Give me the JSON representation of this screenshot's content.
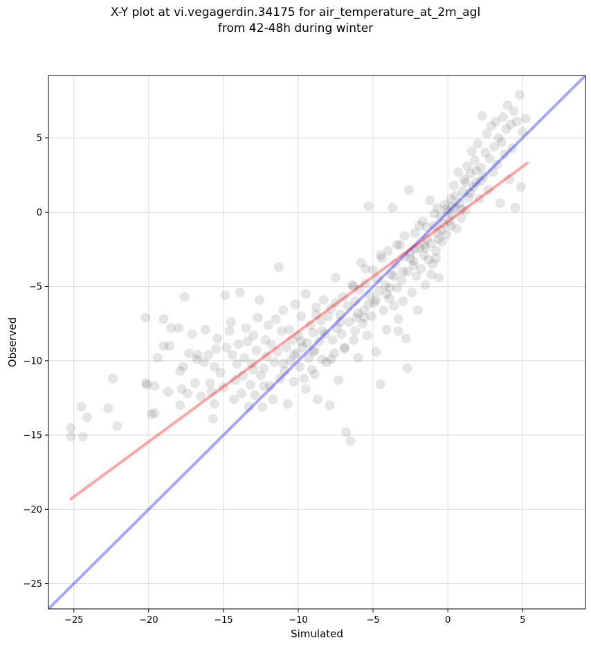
{
  "chart_data": {
    "type": "scatter",
    "title_line1": "X-Y plot at vi.vegagerdin.34175 for air_temperature_at_2m_agl",
    "title_line2": "from 42-48h during winter",
    "xlabel": "Simulated",
    "ylabel": "Observed",
    "xlim": [
      -26.7,
      9.2
    ],
    "ylim": [
      -26.7,
      9.2
    ],
    "xticks": [
      -25,
      -20,
      -15,
      -10,
      -5,
      0,
      5
    ],
    "yticks": [
      -25,
      -20,
      -15,
      -10,
      -5,
      0,
      5
    ],
    "grid": true,
    "point_color": "#000000",
    "identity_line": {
      "color": "#0000ff",
      "from": [
        -26.7,
        -26.7
      ],
      "to": [
        9.2,
        9.2
      ]
    },
    "fit_line": {
      "color": "#ff0000",
      "from": [
        -25.2,
        -19.3
      ],
      "to": [
        5.3,
        3.3
      ]
    },
    "points": [
      [
        -25.2,
        -14.5
      ],
      [
        -25.2,
        -15.1
      ],
      [
        -24.5,
        -13.1
      ],
      [
        -24.4,
        -15.1
      ],
      [
        -24.1,
        -13.8
      ],
      [
        -22.7,
        -13.2
      ],
      [
        -22.4,
        -11.2
      ],
      [
        -22.1,
        -14.4
      ],
      [
        -20.2,
        -7.1
      ],
      [
        -20.2,
        -11.5
      ],
      [
        -19.8,
        -13.6
      ],
      [
        -19.6,
        -13.5
      ],
      [
        -19.6,
        -11.7
      ],
      [
        -19.4,
        -9.8
      ],
      [
        -19.0,
        -7.2
      ],
      [
        -19.0,
        -9.0
      ],
      [
        -18.6,
        -9.0
      ],
      [
        -18.5,
        -7.8
      ],
      [
        -18.0,
        -7.8
      ],
      [
        -17.9,
        -13.0
      ],
      [
        -17.8,
        -11.9
      ],
      [
        -17.7,
        -10.4
      ],
      [
        -17.6,
        -5.7
      ],
      [
        -17.4,
        -12.2
      ],
      [
        -17.3,
        -9.5
      ],
      [
        -17.1,
        -8.2
      ],
      [
        -16.9,
        -11.5
      ],
      [
        -16.7,
        -9.6
      ],
      [
        -16.5,
        -12.4
      ],
      [
        -16.3,
        -10.1
      ],
      [
        -16.2,
        -7.9
      ],
      [
        -16.0,
        -9.6
      ],
      [
        -15.9,
        -11.5
      ],
      [
        -15.8,
        -12.1
      ],
      [
        -15.7,
        -13.9
      ],
      [
        -15.6,
        -12.9
      ],
      [
        -15.5,
        -9.2
      ],
      [
        -15.4,
        -8.5
      ],
      [
        -15.2,
        -10.8
      ],
      [
        -15.0,
        -11.8
      ],
      [
        -14.9,
        -5.6
      ],
      [
        -14.8,
        -9.1
      ],
      [
        -14.6,
        -8.0
      ],
      [
        -14.5,
        -7.4
      ],
      [
        -14.4,
        -9.6
      ],
      [
        -14.3,
        -12.6
      ],
      [
        -14.1,
        -10.2
      ],
      [
        -14.0,
        -8.9
      ],
      [
        -13.9,
        -5.4
      ],
      [
        -13.8,
        -12.2
      ],
      [
        -13.7,
        -11.0
      ],
      [
        -13.6,
        -9.8
      ],
      [
        -13.5,
        -7.8
      ],
      [
        -13.4,
        -8.7
      ],
      [
        -13.3,
        -13.1
      ],
      [
        -13.2,
        -11.6
      ],
      [
        -13.1,
        -10.2
      ],
      [
        -13.0,
        -8.3
      ],
      [
        -12.9,
        -12.3
      ],
      [
        -12.8,
        -9.3
      ],
      [
        -12.7,
        -7.1
      ],
      [
        -12.6,
        -5.9
      ],
      [
        -12.5,
        -11.0
      ],
      [
        -12.4,
        -13.1
      ],
      [
        -12.3,
        -10.5
      ],
      [
        -12.2,
        -8.6
      ],
      [
        -12.1,
        -9.7
      ],
      [
        -12.0,
        -7.6
      ],
      [
        -11.9,
        -11.7
      ],
      [
        -11.8,
        -8.9
      ],
      [
        -11.7,
        -12.6
      ],
      [
        -11.6,
        -10.1
      ],
      [
        -11.5,
        -7.2
      ],
      [
        -11.4,
        -9.4
      ],
      [
        -11.3,
        -3.7
      ],
      [
        -11.2,
        -11.2
      ],
      [
        -11.1,
        -8.0
      ],
      [
        -11.0,
        -6.6
      ],
      [
        -10.9,
        -10.7
      ],
      [
        -10.8,
        -9.1
      ],
      [
        -10.7,
        -12.9
      ],
      [
        -10.6,
        -7.9
      ],
      [
        -10.5,
        -10.0
      ],
      [
        -10.4,
        -8.6
      ],
      [
        -10.3,
        -11.4
      ],
      [
        -10.2,
        -6.2
      ],
      [
        -10.1,
        -9.5
      ],
      [
        -10.0,
        -8.3
      ],
      [
        -9.9,
        -10.4
      ],
      [
        -9.8,
        -7.0
      ],
      [
        -9.7,
        -9.1
      ],
      [
        -9.6,
        -11.2
      ],
      [
        -9.5,
        -5.5
      ],
      [
        -9.4,
        -8.8
      ],
      [
        -9.3,
        -9.8
      ],
      [
        -9.2,
        -7.6
      ],
      [
        -9.1,
        -10.6
      ],
      [
        -9.0,
        -8.1
      ],
      [
        -8.9,
        -9.3
      ],
      [
        -8.8,
        -6.4
      ],
      [
        -8.7,
        -12.6
      ],
      [
        -8.6,
        -8.7
      ],
      [
        -8.5,
        -7.3
      ],
      [
        -8.4,
        -9.9
      ],
      [
        -8.3,
        -5.9
      ],
      [
        -8.2,
        -8.2
      ],
      [
        -8.1,
        -10.1
      ],
      [
        -8.0,
        -7.0
      ],
      [
        -7.9,
        -13.0
      ],
      [
        -7.8,
        -6.5
      ],
      [
        -7.7,
        -8.6
      ],
      [
        -7.6,
        -9.5
      ],
      [
        -7.5,
        -4.4
      ],
      [
        -7.4,
        -7.8
      ],
      [
        -7.3,
        -11.3
      ],
      [
        -7.2,
        -6.9
      ],
      [
        -7.1,
        -8.2
      ],
      [
        -7.0,
        -5.7
      ],
      [
        -6.9,
        -9.2
      ],
      [
        -6.8,
        -14.8
      ],
      [
        -6.7,
        -6.3
      ],
      [
        -6.6,
        -7.4
      ],
      [
        -6.5,
        -15.4
      ],
      [
        -6.4,
        -4.9
      ],
      [
        -6.3,
        -8.6
      ],
      [
        -6.2,
        -6.0
      ],
      [
        -6.1,
        -7.1
      ],
      [
        -6.0,
        -9.8
      ],
      [
        -5.9,
        -5.2
      ],
      [
        -5.8,
        -3.4
      ],
      [
        -5.7,
        -7.5
      ],
      [
        -5.6,
        -6.6
      ],
      [
        -5.5,
        -4.8
      ],
      [
        -5.4,
        -8.3
      ],
      [
        -5.3,
        0.4
      ],
      [
        -5.2,
        -5.6
      ],
      [
        -5.1,
        -7.0
      ],
      [
        -5.0,
        -3.9
      ],
      [
        -4.9,
        -6.1
      ],
      [
        -4.8,
        -9.4
      ],
      [
        -4.7,
        -4.5
      ],
      [
        -4.6,
        -5.3
      ],
      [
        -4.5,
        -11.6
      ],
      [
        -4.4,
        -3.1
      ],
      [
        -4.3,
        -6.6
      ],
      [
        -4.2,
        -4.9
      ],
      [
        -4.1,
        -7.9
      ],
      [
        -4.0,
        -2.6
      ],
      [
        -3.9,
        -5.8
      ],
      [
        -3.8,
        -4.2
      ],
      [
        -3.7,
        0.3
      ],
      [
        -3.6,
        -6.3
      ],
      [
        -3.5,
        -3.5
      ],
      [
        -3.4,
        -5.1
      ],
      [
        -3.3,
        -7.2
      ],
      [
        -3.2,
        -2.2
      ],
      [
        -3.1,
        -4.6
      ],
      [
        -3.0,
        -6.0
      ],
      [
        -2.9,
        -3.0
      ],
      [
        -2.8,
        -8.5
      ],
      [
        -2.7,
        -4.0
      ],
      [
        -2.6,
        1.5
      ],
      [
        -2.5,
        -2.7
      ],
      [
        -2.4,
        -5.4
      ],
      [
        -2.3,
        -3.6
      ],
      [
        -2.2,
        -1.4
      ],
      [
        -2.1,
        -4.3
      ],
      [
        -2.0,
        -6.6
      ],
      [
        -1.9,
        -2.4
      ],
      [
        -1.8,
        -3.8
      ],
      [
        -1.7,
        -0.6
      ],
      [
        -1.6,
        -2.9
      ],
      [
        -1.5,
        -4.9
      ],
      [
        -1.4,
        -1.8
      ],
      [
        -1.3,
        -3.2
      ],
      [
        -1.2,
        0.8
      ],
      [
        -1.1,
        -2.1
      ],
      [
        -1.0,
        -3.5
      ],
      [
        -0.9,
        -0.9
      ],
      [
        -0.8,
        -2.6
      ],
      [
        -0.7,
        -1.4
      ],
      [
        -0.6,
        -4.4
      ],
      [
        -0.5,
        -0.3
      ],
      [
        -0.4,
        -2.0
      ],
      [
        -0.3,
        -0.8
      ],
      [
        -0.2,
        0.5
      ],
      [
        -0.1,
        -1.5
      ],
      [
        0.0,
        0.0
      ],
      [
        0.1,
        -0.6
      ],
      [
        0.2,
        0.9
      ],
      [
        0.3,
        -0.2
      ],
      [
        0.4,
        1.8
      ],
      [
        0.5,
        0.3
      ],
      [
        0.6,
        -1.1
      ],
      [
        0.7,
        2.7
      ],
      [
        0.8,
        0.6
      ],
      [
        0.9,
        -0.4
      ],
      [
        1.0,
        1.4
      ],
      [
        1.1,
        2.2
      ],
      [
        1.2,
        0.1
      ],
      [
        1.3,
        3.1
      ],
      [
        1.4,
        1.0
      ],
      [
        1.5,
        2.6
      ],
      [
        1.6,
        4.1
      ],
      [
        1.7,
        1.7
      ],
      [
        1.8,
        3.5
      ],
      [
        1.9,
        2.0
      ],
      [
        2.0,
        4.6
      ],
      [
        2.1,
        0.9
      ],
      [
        2.2,
        3.0
      ],
      [
        2.3,
        6.5
      ],
      [
        2.4,
        2.4
      ],
      [
        2.5,
        4.0
      ],
      [
        2.6,
        5.3
      ],
      [
        2.7,
        1.5
      ],
      [
        2.8,
        3.6
      ],
      [
        2.9,
        5.8
      ],
      [
        3.0,
        2.7
      ],
      [
        3.1,
        4.4
      ],
      [
        3.2,
        6.1
      ],
      [
        3.3,
        3.2
      ],
      [
        3.4,
        5.0
      ],
      [
        3.5,
        0.6
      ],
      [
        3.6,
        4.7
      ],
      [
        3.7,
        6.4
      ],
      [
        3.8,
        3.9
      ],
      [
        3.9,
        5.6
      ],
      [
        4.0,
        7.2
      ],
      [
        4.1,
        2.2
      ],
      [
        4.2,
        5.9
      ],
      [
        4.3,
        4.3
      ],
      [
        4.4,
        6.8
      ],
      [
        4.6,
        6.1
      ],
      [
        4.8,
        7.9
      ],
      [
        5.0,
        5.4
      ],
      [
        5.2,
        6.3
      ],
      [
        4.9,
        1.7
      ],
      [
        4.5,
        0.3
      ],
      [
        -2.7,
        -10.5
      ],
      [
        -3.3,
        -8.0
      ],
      [
        -1.1,
        -4.2
      ],
      [
        -0.8,
        -3.1
      ],
      [
        -1.6,
        -2.2
      ],
      [
        -2.2,
        -2.5
      ],
      [
        -0.4,
        -1.2
      ],
      [
        -0.9,
        -0.1
      ],
      [
        0.3,
        0.4
      ],
      [
        -0.1,
        0.2
      ],
      [
        -1.4,
        -1.0
      ],
      [
        -2.5,
        -3.1
      ],
      [
        -3.6,
        -4.3
      ],
      [
        -4.1,
        -5.5
      ],
      [
        -5.3,
        -6.2
      ],
      [
        -6.0,
        -6.8
      ],
      [
        -7.2,
        -7.4
      ],
      [
        -8.4,
        -8.0
      ],
      [
        -9.0,
        -9.4
      ],
      [
        -9.8,
        -8.7
      ],
      [
        -10.3,
        -9.6
      ],
      [
        -11.0,
        -10.2
      ],
      [
        -8.8,
        -6.9
      ],
      [
        -7.5,
        -6.1
      ],
      [
        -6.3,
        -5.0
      ],
      [
        -5.5,
        -3.8
      ],
      [
        -4.5,
        -2.9
      ],
      [
        -3.4,
        -2.2
      ],
      [
        -2.9,
        -1.6
      ],
      [
        -1.9,
        -0.9
      ],
      [
        -0.7,
        0.3
      ],
      [
        0.5,
        1.1
      ],
      [
        1.2,
        2.0
      ],
      [
        1.9,
        2.8
      ],
      [
        -12.3,
        -11.7
      ],
      [
        -13.0,
        -10.6
      ],
      [
        -14.2,
        -11.3
      ],
      [
        -15.6,
        -10.4
      ],
      [
        -16.8,
        -9.9
      ],
      [
        -17.9,
        -10.7
      ],
      [
        -18.7,
        -12.1
      ],
      [
        -20.1,
        -11.6
      ],
      [
        -9.5,
        -11.9
      ],
      [
        -8.9,
        -10.9
      ],
      [
        -7.8,
        -9.9
      ],
      [
        -6.9,
        -9.1
      ],
      [
        -6.2,
        -8.0
      ],
      [
        -5.6,
        -7.1
      ],
      [
        -4.8,
        -5.9
      ],
      [
        -3.9,
        -5.1
      ],
      [
        -3.0,
        -4.0
      ],
      [
        -2.3,
        -3.3
      ],
      [
        -1.5,
        -2.4
      ],
      [
        -0.6,
        -1.8
      ],
      [
        0.2,
        -0.9
      ],
      [
        0.9,
        0.2
      ],
      [
        1.5,
        1.3
      ],
      [
        2.2,
        2.1
      ]
    ]
  }
}
